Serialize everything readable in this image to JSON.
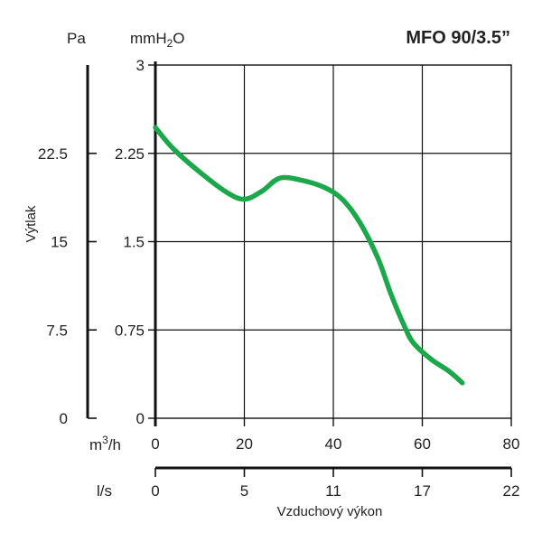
{
  "chart_data": {
    "type": "line",
    "title": "MFO 90/3.5”",
    "ylabel": "Výtlak",
    "xlabel": "Vzduchový výkon",
    "units": {
      "pa": "Pa",
      "mmh2o_pre": "mmH",
      "mmh2o_sub": "2",
      "mmh2o_post": "O",
      "m3h_pre": "m",
      "m3h_sup": "3",
      "m3h_post": "/h",
      "ls": "l/s"
    },
    "y_axis": {
      "ticks": [
        "0",
        "0.75",
        "1.5",
        "2.25",
        "3"
      ],
      "ylim": [
        0,
        3
      ]
    },
    "pa_axis": {
      "ticks": [
        "0",
        "7.5",
        "15",
        "22.5"
      ],
      "range": [
        0,
        30
      ]
    },
    "x_axis": {
      "ticks": [
        "0",
        "20",
        "40",
        "60",
        "80"
      ],
      "xlim": [
        0,
        80
      ]
    },
    "ls_axis": {
      "ticks": [
        "0",
        "5",
        "11",
        "17",
        "22"
      ]
    },
    "grid": true,
    "series": [
      {
        "color": "#1aa84b",
        "x": [
          0,
          4,
          10,
          16,
          20,
          24,
          28,
          33,
          38,
          42,
          46,
          50,
          53,
          56,
          58,
          62,
          66,
          69
        ],
        "y": [
          2.47,
          2.29,
          2.09,
          1.92,
          1.86,
          1.93,
          2.04,
          2.02,
          1.96,
          1.86,
          1.66,
          1.36,
          1.05,
          0.78,
          0.64,
          0.5,
          0.4,
          0.3
        ]
      }
    ]
  }
}
